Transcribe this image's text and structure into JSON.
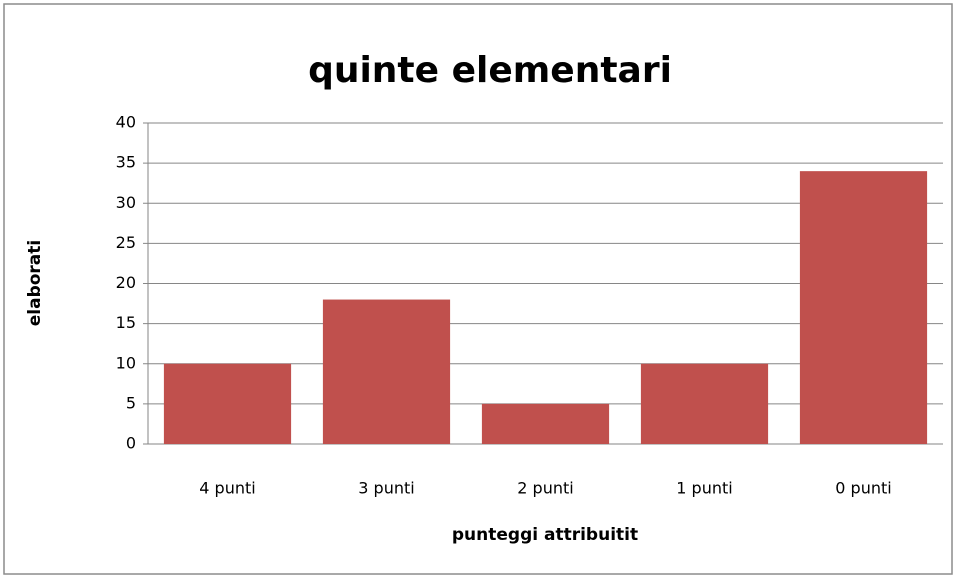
{
  "chart_data": {
    "type": "bar",
    "title": "quinte elementari",
    "x_label": "punteggi attribuitit",
    "y_label": "elaborati",
    "categories": [
      "4 punti",
      "3 punti",
      "2 punti",
      "1 punti",
      "0 punti"
    ],
    "values": [
      10,
      18,
      5,
      10,
      34
    ],
    "color": "#c0504d",
    "ylim": [
      0,
      40
    ],
    "yticks": [
      0,
      5,
      10,
      15,
      20,
      25,
      30,
      35,
      40
    ],
    "grid": true
  }
}
